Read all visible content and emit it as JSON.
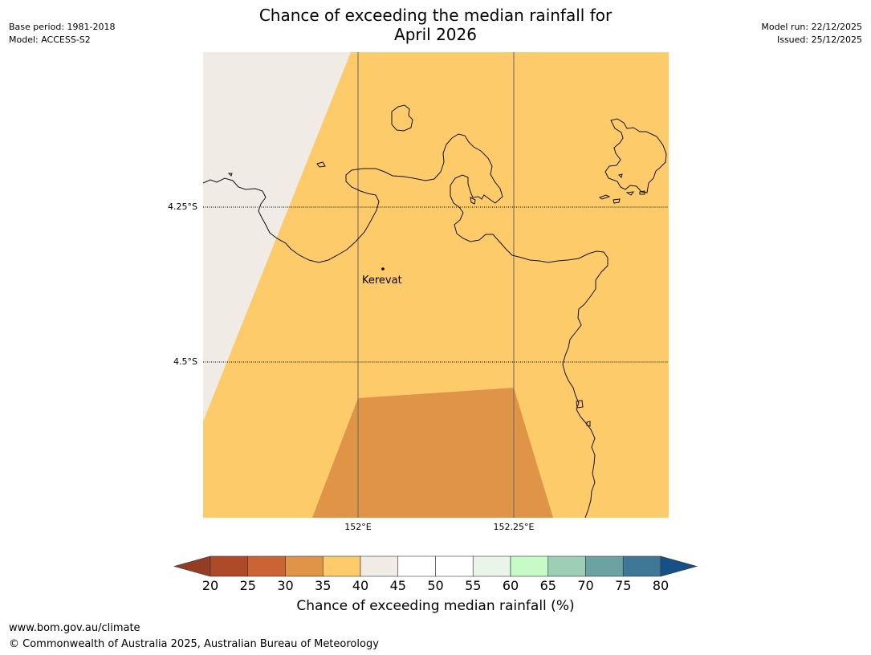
{
  "header": {
    "base_period": "Base period: 1981-2018",
    "model": "Model: ACCESS-S2",
    "model_run": "Model run: 22/12/2025",
    "issued": "Issued: 25/12/2025",
    "title_line1": "Chance of exceeding the median rainfall for",
    "title_line2": "April 2026"
  },
  "map": {
    "latitude_labels": [
      "4.25°S",
      "4.5°S"
    ],
    "longitude_labels": [
      "152°E",
      "152.25°E"
    ],
    "place": "Kerevat",
    "categories": [
      {
        "range": "30-35",
        "color": "#e09448"
      },
      {
        "range": "35-40",
        "color": "#fdcb69"
      },
      {
        "range": "40-45",
        "color": "#f0ebe5"
      }
    ]
  },
  "colorbar": {
    "title": "Chance of exceeding median rainfall (%)",
    "ticks": [
      "20",
      "25",
      "30",
      "35",
      "40",
      "45",
      "50",
      "55",
      "60",
      "65",
      "70",
      "75",
      "80"
    ],
    "colors": [
      "#ae4a27",
      "#cb6433",
      "#e09448",
      "#fdcb69",
      "#f0ebe5",
      "#ffffff",
      "#ffffff",
      "#e8f5e8",
      "#c6fbc8",
      "#9ccfb6",
      "#6ba3a3",
      "#3f7897"
    ],
    "under_color": "#943c24",
    "over_color": "#165087"
  },
  "footer": {
    "url": "www.bom.gov.au/climate",
    "copyright": "© Commonwealth of Australia 2025, Australian Bureau of Meteorology"
  }
}
